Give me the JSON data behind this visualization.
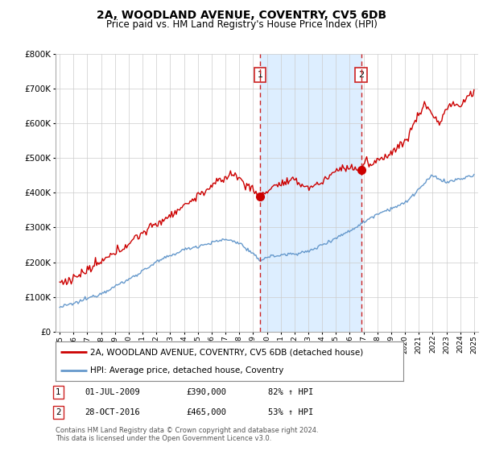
{
  "title": "2A, WOODLAND AVENUE, COVENTRY, CV5 6DB",
  "subtitle": "Price paid vs. HM Land Registry's House Price Index (HPI)",
  "hpi_label": "HPI: Average price, detached house, Coventry",
  "price_label": "2A, WOODLAND AVENUE, COVENTRY, CV5 6DB (detached house)",
  "annotation1": {
    "num": "1",
    "date": "01-JUL-2009",
    "price": "£390,000",
    "hpi": "82% ↑ HPI",
    "x_year": 2009.5,
    "y_val": 390000
  },
  "annotation2": {
    "num": "2",
    "date": "28-OCT-2016",
    "price": "£465,000",
    "hpi": "53% ↑ HPI",
    "x_year": 2016.83,
    "y_val": 465000
  },
  "footer1": "Contains HM Land Registry data © Crown copyright and database right 2024.",
  "footer2": "This data is licensed under the Open Government Licence v3.0.",
  "ylim": [
    0,
    800000
  ],
  "yticks": [
    0,
    100000,
    200000,
    300000,
    400000,
    500000,
    600000,
    700000,
    800000
  ],
  "xlim_start": 1994.7,
  "xlim_end": 2025.3,
  "price_color": "#cc0000",
  "hpi_color": "#6699cc",
  "shade_color": "#ddeeff",
  "vline_color": "#cc2222",
  "bg_color": "#ffffff",
  "grid_color": "#cccccc"
}
